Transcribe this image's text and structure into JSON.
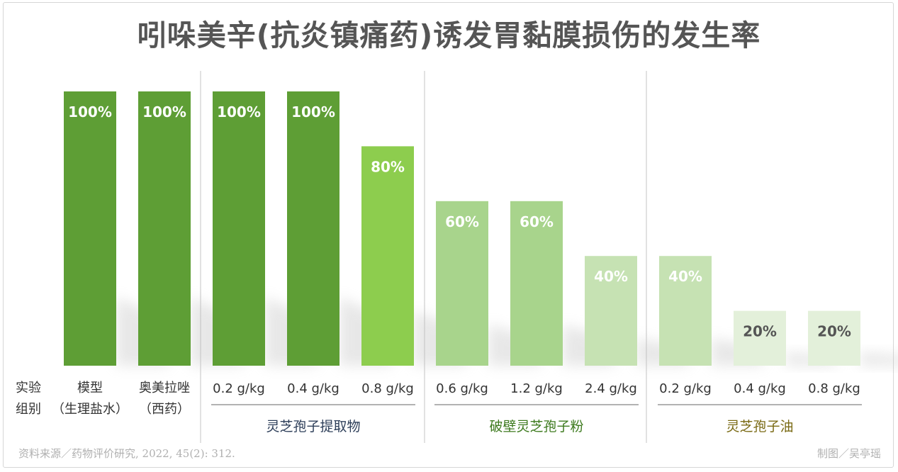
{
  "chart_data": {
    "type": "bar",
    "title": "吲哚美辛(抗炎镇痛药)诱发胃黏膜损伤的发生率",
    "row_header": [
      "实验",
      "组别"
    ],
    "ylim": [
      0,
      100
    ],
    "grid": false,
    "bars": [
      {
        "tick": [
          "模型",
          "（生理盐水）"
        ],
        "value": 100,
        "label": "100%",
        "color": "#5e9e35",
        "label_color": "#ffffff",
        "group": 0
      },
      {
        "tick": [
          "奥美拉唑",
          "（西药）"
        ],
        "value": 100,
        "label": "100%",
        "color": "#5e9e35",
        "label_color": "#ffffff",
        "group": 0
      },
      {
        "tick": [
          "0.2 g/kg"
        ],
        "value": 100,
        "label": "100%",
        "color": "#5e9e35",
        "label_color": "#ffffff",
        "group": 1
      },
      {
        "tick": [
          "0.4 g/kg"
        ],
        "value": 100,
        "label": "100%",
        "color": "#5e9e35",
        "label_color": "#ffffff",
        "group": 1
      },
      {
        "tick": [
          "0.8 g/kg"
        ],
        "value": 80,
        "label": "80%",
        "color": "#8dcd4e",
        "label_color": "#ffffff",
        "group": 1
      },
      {
        "tick": [
          "0.6 g/kg"
        ],
        "value": 60,
        "label": "60%",
        "color": "#a8d48c",
        "label_color": "#ffffff",
        "group": 2
      },
      {
        "tick": [
          "1.2 g/kg"
        ],
        "value": 60,
        "label": "60%",
        "color": "#a8d48c",
        "label_color": "#ffffff",
        "group": 2
      },
      {
        "tick": [
          "2.4 g/kg"
        ],
        "value": 40,
        "label": "40%",
        "color": "#c6e2b3",
        "label_color": "#ffffff",
        "group": 2
      },
      {
        "tick": [
          "0.2 g/kg"
        ],
        "value": 40,
        "label": "40%",
        "color": "#c6e2b3",
        "label_color": "#ffffff",
        "group": 3
      },
      {
        "tick": [
          "0.4 g/kg"
        ],
        "value": 20,
        "label": "20%",
        "color": "#e3f0da",
        "label_color": "#555555",
        "group": 3
      },
      {
        "tick": [
          "0.8 g/kg"
        ],
        "value": 20,
        "label": "20%",
        "color": "#e3f0da",
        "label_color": "#555555",
        "group": 3
      }
    ],
    "groups": [
      {
        "name": "",
        "color": "#333333"
      },
      {
        "name": "灵芝孢子提取物",
        "color": "#2d3e59"
      },
      {
        "name": "破壁灵芝孢子粉",
        "color": "#3d7a1e"
      },
      {
        "name": "灵芝孢子油",
        "color": "#7a6a14"
      }
    ]
  },
  "footer": {
    "source": "资料来源／药物评价研究, 2022, 45(2): 312.",
    "credit": "制图／吴亭瑶"
  }
}
